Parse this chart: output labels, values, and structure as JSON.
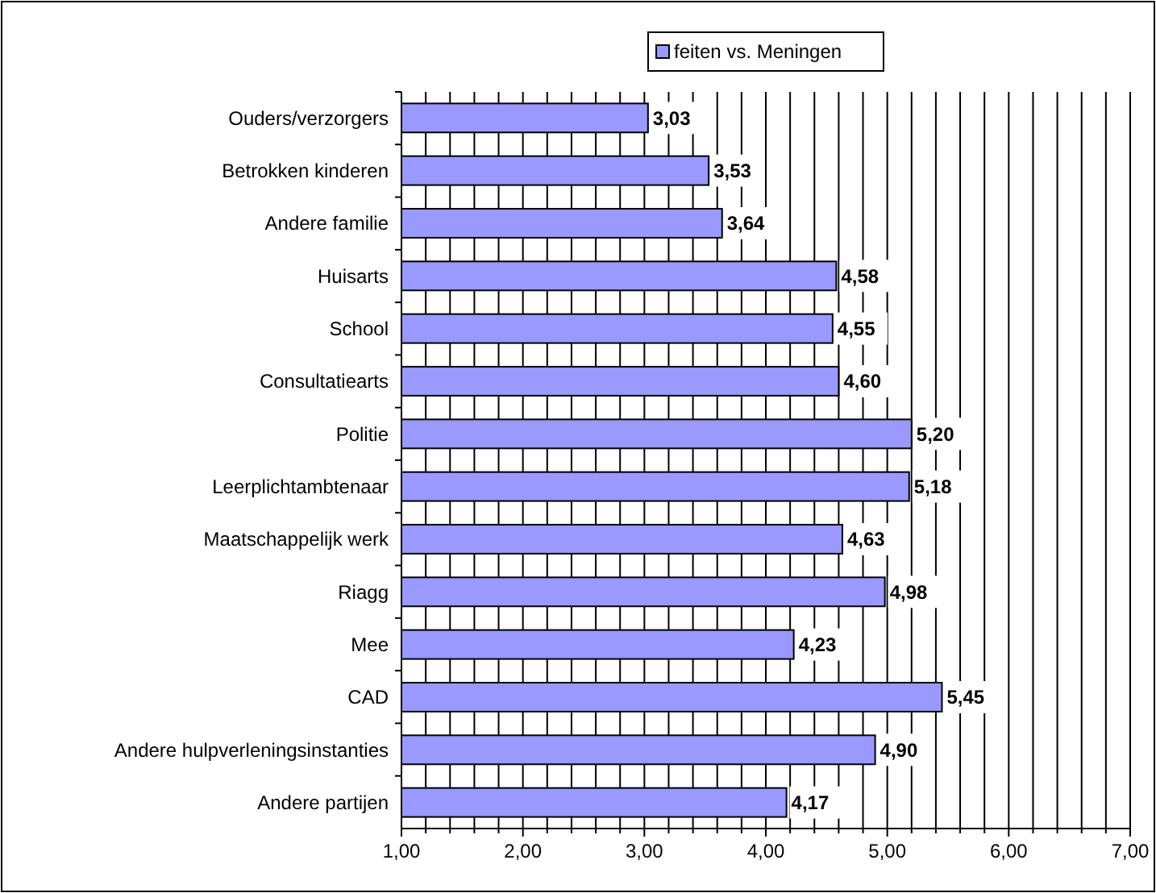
{
  "chart_data": {
    "type": "bar",
    "orientation": "horizontal",
    "categories": [
      "Ouders/verzorgers",
      "Betrokken kinderen",
      "Andere familie",
      "Huisarts",
      "School",
      "Consultatiearts",
      "Politie",
      "Leerplichtambtenaar",
      "Maatschappelijk werk",
      "Riagg",
      "Mee",
      "CAD",
      "Andere hulpverleningsinstanties",
      "Andere partijen"
    ],
    "series": [
      {
        "name": "feiten vs. Meningen",
        "color": "#9999ff",
        "values": [
          3.03,
          3.53,
          3.64,
          4.58,
          4.55,
          4.6,
          5.2,
          5.18,
          4.63,
          4.98,
          4.23,
          5.45,
          4.9,
          4.17
        ],
        "value_labels": [
          "3,03",
          "3,53",
          "3,64",
          "4,58",
          "4,55",
          "4,60",
          "5,20",
          "5,18",
          "4,63",
          "4,98",
          "4,23",
          "5,45",
          "4,90",
          "4,17"
        ]
      }
    ],
    "xlim": [
      1,
      7
    ],
    "xticks": [
      {
        "value": 1,
        "label": "1,00"
      },
      {
        "value": 1.2,
        "label": null
      },
      {
        "value": 1.4,
        "label": null
      },
      {
        "value": 1.6,
        "label": null
      },
      {
        "value": 1.8,
        "label": null
      },
      {
        "value": 2,
        "label": "2,00"
      },
      {
        "value": 2.2,
        "label": null
      },
      {
        "value": 2.4,
        "label": null
      },
      {
        "value": 2.6,
        "label": null
      },
      {
        "value": 2.8,
        "label": null
      },
      {
        "value": 3,
        "label": "3,00"
      },
      {
        "value": 3.2,
        "label": null
      },
      {
        "value": 3.4,
        "label": null
      },
      {
        "value": 3.6,
        "label": null
      },
      {
        "value": 3.8,
        "label": null
      },
      {
        "value": 4,
        "label": "4,00"
      },
      {
        "value": 4.2,
        "label": null
      },
      {
        "value": 4.4,
        "label": null
      },
      {
        "value": 4.6,
        "label": null
      },
      {
        "value": 4.8,
        "label": null
      },
      {
        "value": 5,
        "label": "5,00"
      },
      {
        "value": 5.2,
        "label": null
      },
      {
        "value": 5.4,
        "label": null
      },
      {
        "value": 5.6,
        "label": null
      },
      {
        "value": 5.8,
        "label": null
      },
      {
        "value": 6,
        "label": "6,00"
      },
      {
        "value": 6.2,
        "label": null
      },
      {
        "value": 6.4,
        "label": null
      },
      {
        "value": 6.6,
        "label": null
      },
      {
        "value": 6.8,
        "label": null
      },
      {
        "value": 7,
        "label": "7,00"
      }
    ],
    "grid": "x",
    "legend": "top"
  }
}
